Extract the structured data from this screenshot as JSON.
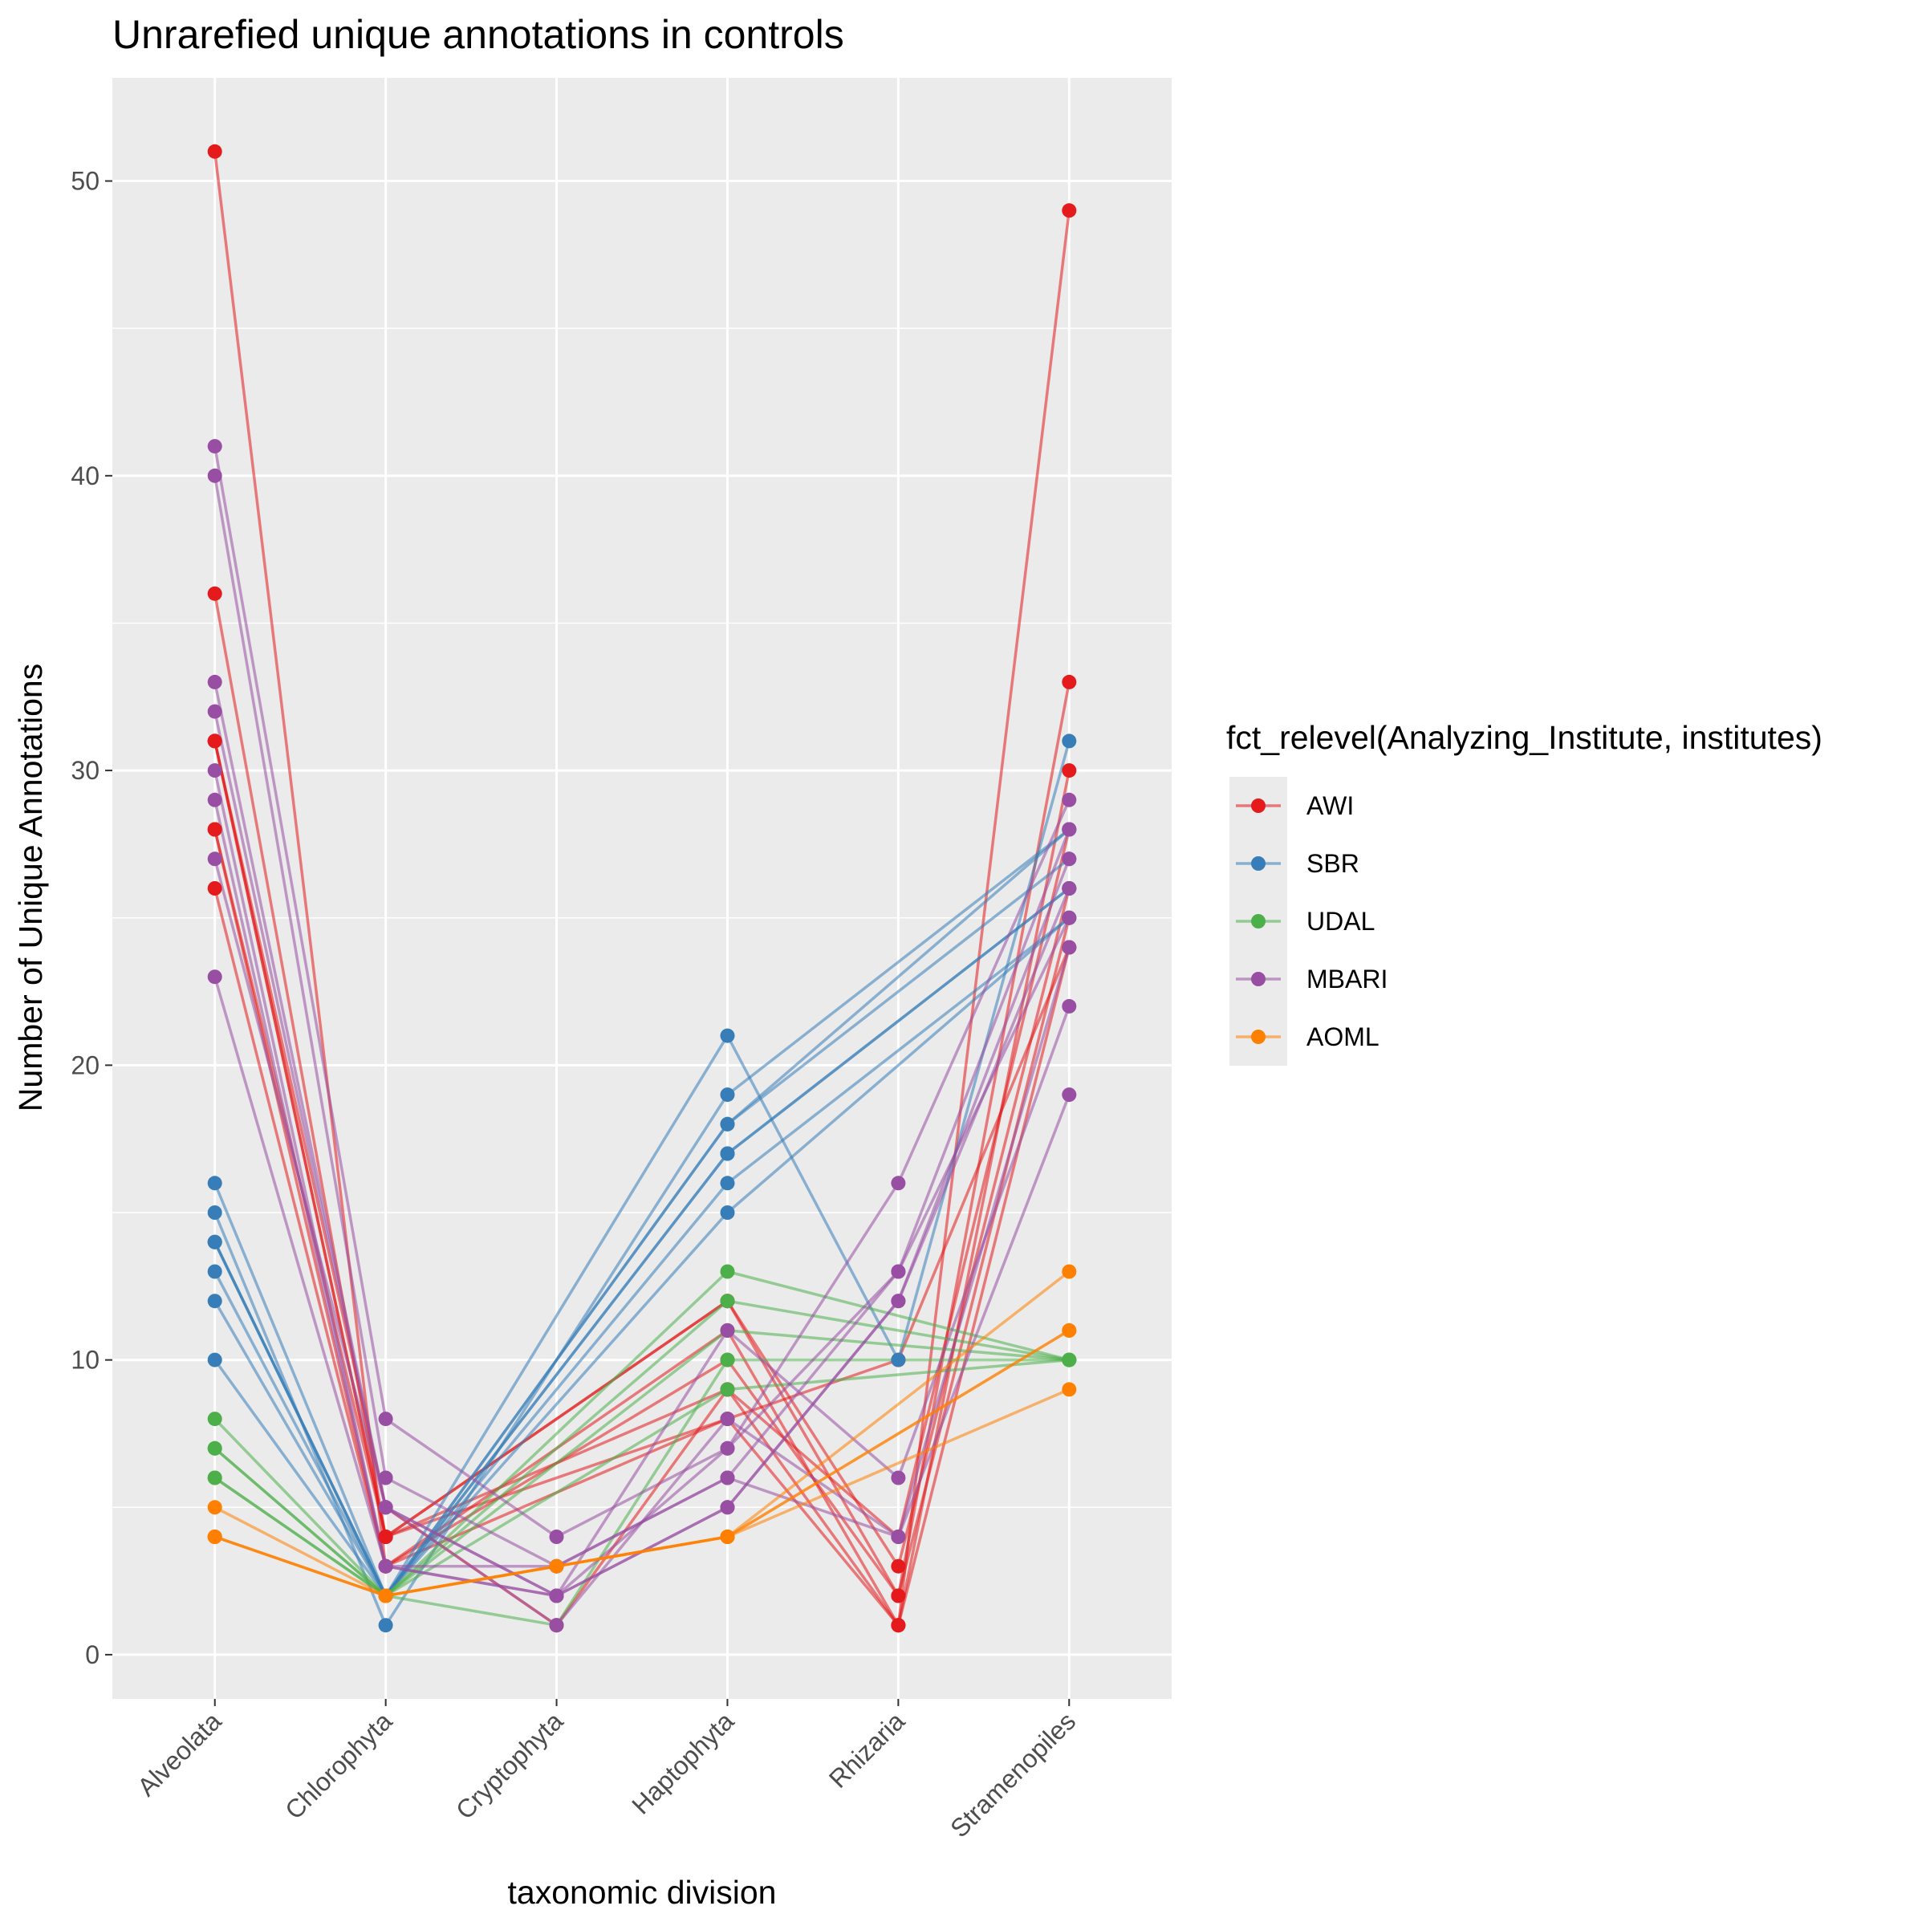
{
  "chart_data": {
    "type": "line",
    "title": "Unrarefied unique annotations in controls",
    "xlabel": "taxonomic division",
    "ylabel": "Number of Unique Annotations",
    "categories": [
      "Alveolata",
      "Chlorophyta",
      "Cryptophyta",
      "Haptophyta",
      "Rhizaria",
      "Stramenopiles"
    ],
    "ylim": [
      -1.5,
      53.5
    ],
    "yticks": [
      0,
      10,
      20,
      30,
      40,
      50
    ],
    "grid": true,
    "legend": {
      "title": "fct_relevel(Analyzing_Institute, institutes)",
      "placement": "right",
      "entries": [
        "AWI",
        "SBR",
        "UDAL",
        "MBARI",
        "AOML"
      ]
    },
    "colors": {
      "AWI": "#E41A1C",
      "SBR": "#377EB8",
      "UDAL": "#4DAF4A",
      "MBARI": "#984EA3",
      "AOML": "#FF7F00"
    },
    "series": [
      {
        "group": "AWI",
        "values": [
          51,
          3,
          null,
          11,
          1,
          49
        ]
      },
      {
        "group": "AWI",
        "values": [
          36,
          4,
          null,
          12,
          2,
          33
        ]
      },
      {
        "group": "AWI",
        "values": [
          31,
          4,
          null,
          9,
          1,
          30
        ]
      },
      {
        "group": "AWI",
        "values": [
          31,
          5,
          1,
          9,
          4,
          28
        ]
      },
      {
        "group": "AWI",
        "values": [
          28,
          3,
          null,
          8,
          10,
          24
        ]
      },
      {
        "group": "AWI",
        "values": [
          28,
          4,
          null,
          12,
          3,
          26
        ]
      },
      {
        "group": "AWI",
        "values": [
          26,
          3,
          null,
          10,
          2,
          25
        ]
      },
      {
        "group": "AWI",
        "values": [
          31,
          4,
          null,
          8,
          1,
          24
        ]
      },
      {
        "group": "SBR",
        "values": [
          16,
          2,
          null,
          21,
          10,
          31
        ]
      },
      {
        "group": "SBR",
        "values": [
          15,
          1,
          null,
          19,
          null,
          28
        ]
      },
      {
        "group": "SBR",
        "values": [
          14,
          2,
          null,
          18,
          null,
          28
        ]
      },
      {
        "group": "SBR",
        "values": [
          14,
          2,
          null,
          18,
          null,
          27
        ]
      },
      {
        "group": "SBR",
        "values": [
          13,
          2,
          null,
          17,
          null,
          26
        ]
      },
      {
        "group": "SBR",
        "values": [
          12,
          2,
          null,
          16,
          null,
          25
        ]
      },
      {
        "group": "SBR",
        "values": [
          10,
          2,
          null,
          15,
          null,
          25
        ]
      },
      {
        "group": "SBR",
        "values": [
          14,
          2,
          null,
          17,
          null,
          26
        ]
      },
      {
        "group": "UDAL",
        "values": [
          8,
          2,
          null,
          13,
          null,
          10
        ]
      },
      {
        "group": "UDAL",
        "values": [
          7,
          2,
          null,
          12,
          null,
          10
        ]
      },
      {
        "group": "UDAL",
        "values": [
          7,
          2,
          null,
          11,
          null,
          10
        ]
      },
      {
        "group": "UDAL",
        "values": [
          6,
          2,
          1,
          10,
          null,
          10
        ]
      },
      {
        "group": "UDAL",
        "values": [
          6,
          2,
          null,
          9,
          null,
          10
        ]
      },
      {
        "group": "MBARI",
        "values": [
          41,
          8,
          4,
          7,
          16,
          29
        ]
      },
      {
        "group": "MBARI",
        "values": [
          40,
          6,
          3,
          6,
          13,
          28
        ]
      },
      {
        "group": "MBARI",
        "values": [
          33,
          5,
          2,
          5,
          12,
          27
        ]
      },
      {
        "group": "MBARI",
        "values": [
          32,
          5,
          2,
          7,
          13,
          25
        ]
      },
      {
        "group": "MBARI",
        "values": [
          30,
          3,
          2,
          11,
          6,
          22
        ]
      },
      {
        "group": "MBARI",
        "values": [
          29,
          3,
          3,
          6,
          4,
          19
        ]
      },
      {
        "group": "MBARI",
        "values": [
          27,
          5,
          1,
          8,
          4,
          24
        ]
      },
      {
        "group": "MBARI",
        "values": [
          23,
          3,
          2,
          5,
          12,
          26
        ]
      },
      {
        "group": "AOML",
        "values": [
          5,
          2,
          null,
          4,
          null,
          13
        ]
      },
      {
        "group": "AOML",
        "values": [
          4,
          2,
          3,
          4,
          null,
          11
        ]
      },
      {
        "group": "AOML",
        "values": [
          4,
          2,
          null,
          4,
          null,
          9
        ]
      },
      {
        "group": "AOML",
        "values": [
          4,
          2,
          null,
          4,
          null,
          11
        ]
      }
    ]
  }
}
